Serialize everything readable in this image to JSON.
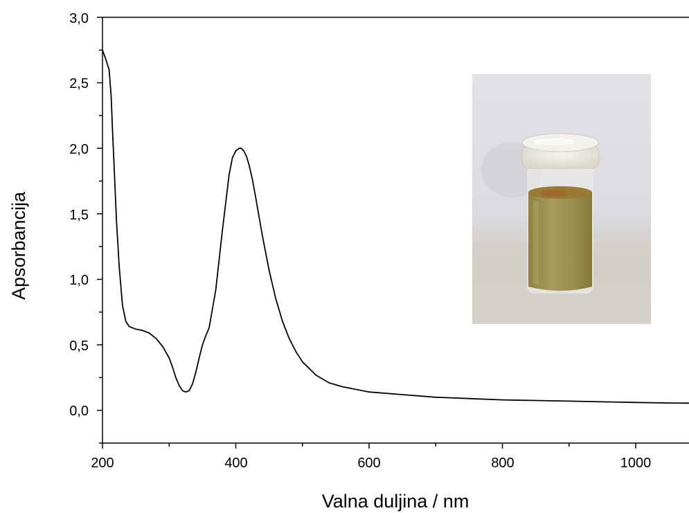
{
  "chart_data": {
    "type": "line",
    "xlabel": "Valna duljina / nm",
    "ylabel": "Apsorbancija",
    "xlim": [
      200,
      1080
    ],
    "ylim": [
      -0.25,
      3.0
    ],
    "x_ticks": [
      "200",
      "400",
      "600",
      "800",
      "1000"
    ],
    "y_ticks": [
      "0,0",
      "0,5",
      "1,0",
      "1,5",
      "2,0",
      "2,5",
      "3,0"
    ],
    "grid": false,
    "legend": "none",
    "inset": "photograph of a capped glass vial containing a yellow-green liquid",
    "series": [
      {
        "color": "#000000",
        "x": [
          200,
          205,
          210,
          213,
          215,
          218,
          221,
          225,
          230,
          235,
          240,
          250,
          260,
          270,
          280,
          290,
          300,
          305,
          310,
          315,
          320,
          325,
          330,
          335,
          340,
          345,
          350,
          355,
          360,
          370,
          380,
          390,
          395,
          400,
          405,
          408,
          412,
          416,
          420,
          425,
          430,
          440,
          450,
          460,
          470,
          480,
          490,
          500,
          520,
          540,
          560,
          580,
          600,
          650,
          700,
          750,
          800,
          850,
          900,
          950,
          1000,
          1050,
          1080
        ],
        "y": [
          2.75,
          2.68,
          2.6,
          2.4,
          2.15,
          1.8,
          1.45,
          1.1,
          0.8,
          0.68,
          0.64,
          0.62,
          0.61,
          0.59,
          0.55,
          0.49,
          0.4,
          0.33,
          0.25,
          0.19,
          0.15,
          0.14,
          0.15,
          0.2,
          0.29,
          0.4,
          0.5,
          0.57,
          0.63,
          0.92,
          1.38,
          1.8,
          1.93,
          1.98,
          2.0,
          2.0,
          1.98,
          1.94,
          1.87,
          1.76,
          1.62,
          1.33,
          1.07,
          0.85,
          0.68,
          0.55,
          0.45,
          0.37,
          0.27,
          0.21,
          0.18,
          0.16,
          0.14,
          0.12,
          0.1,
          0.09,
          0.08,
          0.075,
          0.07,
          0.065,
          0.06,
          0.056,
          0.055
        ]
      }
    ]
  }
}
